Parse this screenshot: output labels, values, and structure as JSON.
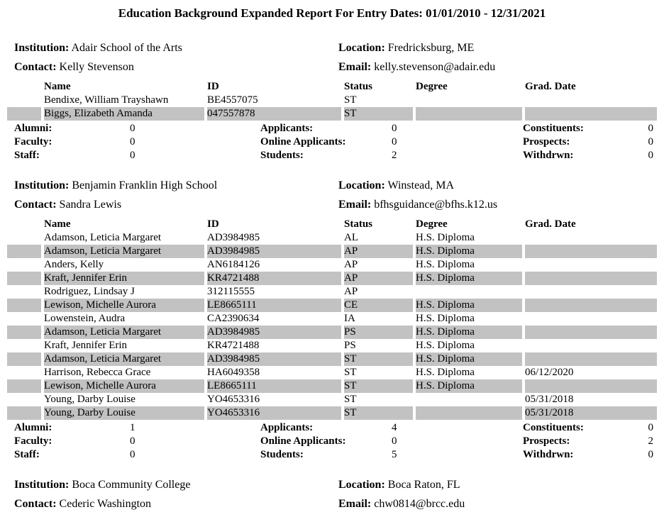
{
  "title": "Education Background Expanded Report For Entry Dates: 01/01/2010 - 12/31/2021",
  "colors": {
    "row_highlight": "#c2c2c2",
    "text": "#000000",
    "background": "#ffffff"
  },
  "labels": {
    "institution": "Institution:",
    "location": "Location:",
    "contact": "Contact:",
    "email": "Email:"
  },
  "table_headers": {
    "name": "Name",
    "id": "ID",
    "status": "Status",
    "degree": "Degree",
    "grad_date": "Grad. Date"
  },
  "summary_labels": {
    "alumni": "Alumni:",
    "applicants": "Applicants:",
    "constituents": "Constituents:",
    "faculty": "Faculty:",
    "online_applicants": "Online Applicants:",
    "prospects": "Prospects:",
    "staff": "Staff:",
    "students": "Students:",
    "withdrwn": "Withdrwn:"
  },
  "sections": [
    {
      "institution": "Adair School of the Arts",
      "location": "Fredricksburg, ME",
      "contact": "Kelly Stevenson",
      "email": "kelly.stevenson@adair.edu",
      "rows": [
        {
          "name": "Bendixe, William Trayshawn",
          "id": "BE4557075",
          "status": "ST",
          "degree": "",
          "grad_date": "",
          "highlight": false
        },
        {
          "name": "Biggs, Elizabeth Amanda",
          "id": "047557878",
          "status": "ST",
          "degree": "",
          "grad_date": "",
          "highlight": true
        }
      ],
      "summary": {
        "alumni": "0",
        "applicants": "0",
        "constituents": "0",
        "faculty": "0",
        "online_applicants": "0",
        "prospects": "0",
        "staff": "0",
        "students": "2",
        "withdrwn": "0"
      }
    },
    {
      "institution": "Benjamin Franklin High School",
      "location": "Winstead, MA",
      "contact": "Sandra Lewis",
      "email": "bfhsguidance@bfhs.k12.us",
      "rows": [
        {
          "name": "Adamson, Leticia Margaret",
          "id": "AD3984985",
          "status": "AL",
          "degree": "H.S. Diploma",
          "grad_date": "",
          "highlight": false
        },
        {
          "name": "Adamson, Leticia Margaret",
          "id": "AD3984985",
          "status": "AP",
          "degree": "H.S. Diploma",
          "grad_date": "",
          "highlight": true
        },
        {
          "name": "Anders, Kelly",
          "id": "AN6184126",
          "status": "AP",
          "degree": "H.S. Diploma",
          "grad_date": "",
          "highlight": false
        },
        {
          "name": "Kraft, Jennifer Erin",
          "id": "KR4721488",
          "status": "AP",
          "degree": "H.S. Diploma",
          "grad_date": "",
          "highlight": true
        },
        {
          "name": "Rodriguez, Lindsay J",
          "id": "312115555",
          "status": "AP",
          "degree": "",
          "grad_date": "",
          "highlight": false
        },
        {
          "name": "Lewison, Michelle Aurora",
          "id": "LE8665111",
          "status": "CE",
          "degree": "H.S. Diploma",
          "grad_date": "",
          "highlight": true
        },
        {
          "name": "Lowenstein, Audra",
          "id": "CA2390634",
          "status": "IA",
          "degree": "H.S. Diploma",
          "grad_date": "",
          "highlight": false
        },
        {
          "name": "Adamson, Leticia Margaret",
          "id": "AD3984985",
          "status": "PS",
          "degree": "H.S. Diploma",
          "grad_date": "",
          "highlight": true
        },
        {
          "name": "Kraft, Jennifer Erin",
          "id": "KR4721488",
          "status": "PS",
          "degree": "H.S. Diploma",
          "grad_date": "",
          "highlight": false
        },
        {
          "name": "Adamson, Leticia Margaret",
          "id": "AD3984985",
          "status": "ST",
          "degree": "H.S. Diploma",
          "grad_date": "",
          "highlight": true
        },
        {
          "name": "Harrison, Rebecca Grace",
          "id": "HA6049358",
          "status": "ST",
          "degree": "H.S. Diploma",
          "grad_date": "06/12/2020",
          "highlight": false
        },
        {
          "name": "Lewison, Michelle Aurora",
          "id": "LE8665111",
          "status": "ST",
          "degree": "H.S. Diploma",
          "grad_date": "",
          "highlight": true
        },
        {
          "name": "Young, Darby Louise",
          "id": "YO4653316",
          "status": "ST",
          "degree": "",
          "grad_date": "05/31/2018",
          "highlight": false
        },
        {
          "name": "Young, Darby Louise",
          "id": "YO4653316",
          "status": "ST",
          "degree": "",
          "grad_date": "05/31/2018",
          "highlight": true
        }
      ],
      "summary": {
        "alumni": "1",
        "applicants": "4",
        "constituents": "0",
        "faculty": "0",
        "online_applicants": "0",
        "prospects": "2",
        "staff": "0",
        "students": "5",
        "withdrwn": "0"
      }
    },
    {
      "institution": "Boca Community College",
      "location": "Boca Raton, FL",
      "contact": "Cederic Washington",
      "email": "chw0814@brcc.edu"
    }
  ]
}
